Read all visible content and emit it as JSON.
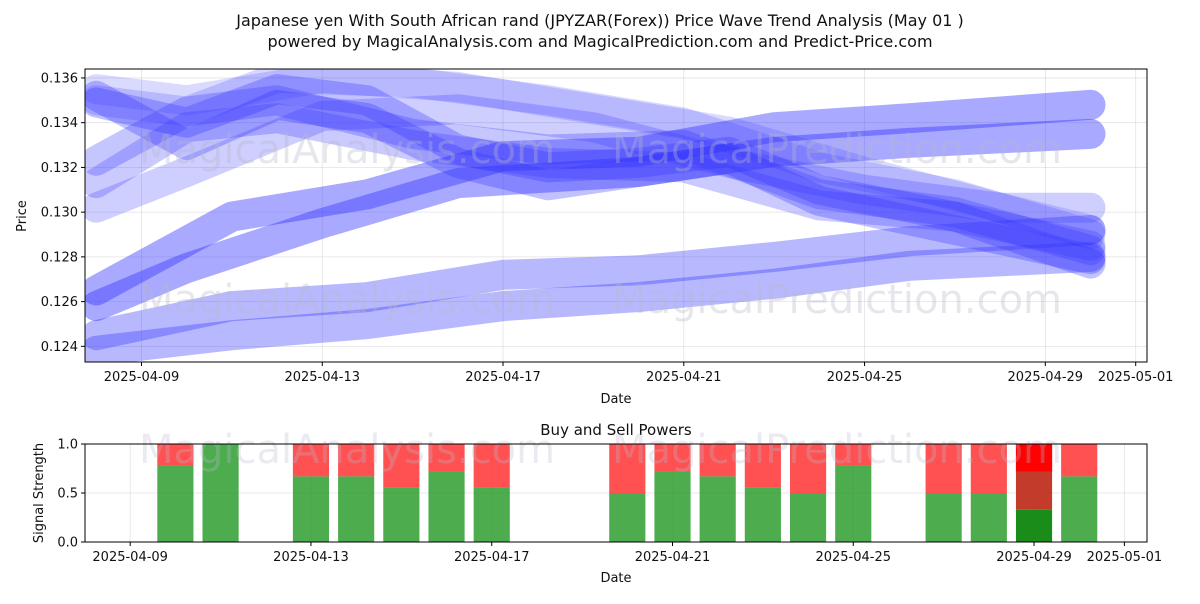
{
  "title_line1": "Japanese yen With South African rand (JPYZAR(Forex)) Price Wave Trend Analysis (May 01 )",
  "title_line2": "powered by MagicalAnalysis.com and MagicalPrediction.com and Predict-Price.com",
  "watermarks": [
    "MagicalAnalysis.com",
    "MagicalPrediction.com"
  ],
  "colors": {
    "wave": "#3333ff",
    "buy": "#2e9e2e",
    "sell": "#ff3333",
    "buy_strong": "#008000",
    "sell_strong": "#ff0000",
    "sell_mid": "#c03020"
  },
  "chart_data": [
    {
      "type": "line",
      "title": "",
      "xlabel": "Date",
      "ylabel": "Price",
      "xlim": [
        "2025-04-07T18:00",
        "2025-05-01T06:00"
      ],
      "ylim": [
        0.1233,
        0.1364
      ],
      "x_ticks": [
        "2025-04-09",
        "2025-04-13",
        "2025-04-17",
        "2025-04-21",
        "2025-04-25",
        "2025-04-29",
        "2025-05-01"
      ],
      "y_ticks": [
        "0.124",
        "0.126",
        "0.128",
        "0.130",
        "0.132",
        "0.134",
        "0.136"
      ],
      "grid": true,
      "series": [
        {
          "opacity": 0.42,
          "x": [
            "2025-04-08",
            "2025-04-11",
            "2025-04-14",
            "2025-04-17",
            "2025-04-20",
            "2025-04-23",
            "2025-04-26",
            "2025-04-30"
          ],
          "y": [
            0.1265,
            0.1298,
            0.1308,
            0.1325,
            0.1327,
            0.1338,
            0.1342,
            0.1348
          ]
        },
        {
          "opacity": 0.42,
          "x": [
            "2025-04-08",
            "2025-04-10",
            "2025-04-13",
            "2025-04-16",
            "2025-04-20",
            "2025-04-23",
            "2025-04-26",
            "2025-04-30"
          ],
          "y": [
            0.1258,
            0.1275,
            0.1295,
            0.1313,
            0.1318,
            0.1327,
            0.1331,
            0.1335
          ]
        },
        {
          "opacity": 0.35,
          "x": [
            "2025-04-08",
            "2025-04-11",
            "2025-04-14",
            "2025-04-17",
            "2025-04-20",
            "2025-04-23",
            "2025-04-26",
            "2025-04-30"
          ],
          "y": [
            0.1245,
            0.1258,
            0.1262,
            0.1272,
            0.1274,
            0.128,
            0.1287,
            0.1292
          ]
        },
        {
          "opacity": 0.35,
          "x": [
            "2025-04-08",
            "2025-04-11",
            "2025-04-14",
            "2025-04-17",
            "2025-04-20",
            "2025-04-23",
            "2025-04-26",
            "2025-04-30"
          ],
          "y": [
            0.1238,
            0.1245,
            0.125,
            0.1258,
            0.1262,
            0.1268,
            0.1276,
            0.128
          ]
        },
        {
          "opacity": 0.3,
          "x": [
            "2025-04-08",
            "2025-04-10",
            "2025-04-12",
            "2025-04-14",
            "2025-04-16",
            "2025-04-18",
            "2025-04-20",
            "2025-04-22",
            "2025-04-24",
            "2025-04-27",
            "2025-04-30"
          ],
          "y": [
            0.1349,
            0.134,
            0.1355,
            0.135,
            0.1328,
            0.132,
            0.1322,
            0.1327,
            0.131,
            0.1298,
            0.1277
          ]
        },
        {
          "opacity": 0.3,
          "x": [
            "2025-04-08",
            "2025-04-10",
            "2025-04-12",
            "2025-04-14",
            "2025-04-16",
            "2025-04-18",
            "2025-04-20",
            "2025-04-22",
            "2025-04-24",
            "2025-04-27",
            "2025-04-30"
          ],
          "y": [
            0.1352,
            0.133,
            0.1348,
            0.1342,
            0.1322,
            0.1312,
            0.1318,
            0.1324,
            0.1305,
            0.1292,
            0.1279
          ]
        },
        {
          "opacity": 0.28,
          "x": [
            "2025-04-08",
            "2025-04-10",
            "2025-04-12",
            "2025-04-15",
            "2025-04-18",
            "2025-04-21",
            "2025-04-24",
            "2025-04-27",
            "2025-04-30"
          ],
          "y": [
            0.1323,
            0.1345,
            0.135,
            0.1335,
            0.1328,
            0.133,
            0.1308,
            0.13,
            0.1283
          ]
        },
        {
          "opacity": 0.26,
          "x": [
            "2025-04-08",
            "2025-04-10",
            "2025-04-12",
            "2025-04-15",
            "2025-04-18",
            "2025-04-21",
            "2025-04-24",
            "2025-04-27",
            "2025-04-30"
          ],
          "y": [
            0.1313,
            0.1338,
            0.1342,
            0.133,
            0.1322,
            0.132,
            0.1303,
            0.1298,
            0.1285
          ]
        },
        {
          "opacity": 0.24,
          "x": [
            "2025-04-08",
            "2025-04-10",
            "2025-04-13",
            "2025-04-16",
            "2025-04-19",
            "2025-04-22",
            "2025-04-25",
            "2025-04-28",
            "2025-04-30"
          ],
          "y": [
            0.1302,
            0.1318,
            0.1343,
            0.1346,
            0.1338,
            0.1322,
            0.131,
            0.1302,
            0.1302
          ]
        },
        {
          "opacity": 0.2,
          "x": [
            "2025-04-08",
            "2025-04-10",
            "2025-04-12",
            "2025-04-15",
            "2025-04-18",
            "2025-04-21",
            "2025-04-24",
            "2025-04-27",
            "2025-04-30"
          ],
          "y": [
            0.135,
            0.1345,
            0.136,
            0.1358,
            0.135,
            0.134,
            0.132,
            0.1308,
            0.129
          ]
        },
        {
          "opacity": 0.18,
          "x": [
            "2025-04-08",
            "2025-04-10",
            "2025-04-13",
            "2025-04-16",
            "2025-04-19",
            "2025-04-22",
            "2025-04-25",
            "2025-04-28",
            "2025-04-30"
          ],
          "y": [
            0.1355,
            0.135,
            0.136,
            0.1356,
            0.1346,
            0.1336,
            0.1318,
            0.1302,
            0.1292
          ]
        }
      ]
    },
    {
      "type": "bar",
      "title": "Buy and Sell Powers",
      "xlabel": "Date",
      "ylabel": "Signal Strength",
      "ylim": [
        0,
        1
      ],
      "y_ticks": [
        "0.0",
        "0.5",
        "1.0"
      ],
      "x_ticks": [
        "2025-04-09",
        "2025-04-13",
        "2025-04-17",
        "2025-04-21",
        "2025-04-25",
        "2025-04-29",
        "2025-05-01"
      ],
      "grid": true,
      "series": [
        {
          "name": "buy",
          "x": [
            "2025-04-10",
            "2025-04-11",
            "2025-04-13",
            "2025-04-14",
            "2025-04-15",
            "2025-04-16",
            "2025-04-17",
            "2025-04-20",
            "2025-04-21",
            "2025-04-22",
            "2025-04-23",
            "2025-04-24",
            "2025-04-25",
            "2025-04-27",
            "2025-04-28",
            "2025-04-29",
            "2025-04-30"
          ],
          "values": [
            0.78,
            1.0,
            0.67,
            0.67,
            0.56,
            0.72,
            0.56,
            0.5,
            0.72,
            0.67,
            0.56,
            0.5,
            0.78,
            0.5,
            0.5,
            0.33,
            0.67
          ]
        },
        {
          "name": "sell",
          "x": [
            "2025-04-10",
            "2025-04-11",
            "2025-04-13",
            "2025-04-14",
            "2025-04-15",
            "2025-04-16",
            "2025-04-17",
            "2025-04-20",
            "2025-04-21",
            "2025-04-22",
            "2025-04-23",
            "2025-04-24",
            "2025-04-25",
            "2025-04-27",
            "2025-04-28",
            "2025-04-29",
            "2025-04-30"
          ],
          "values": [
            0.22,
            0.0,
            0.33,
            0.33,
            0.44,
            0.28,
            0.44,
            0.5,
            0.28,
            0.33,
            0.44,
            0.5,
            0.22,
            0.5,
            0.5,
            0.67,
            0.33
          ]
        }
      ]
    }
  ]
}
